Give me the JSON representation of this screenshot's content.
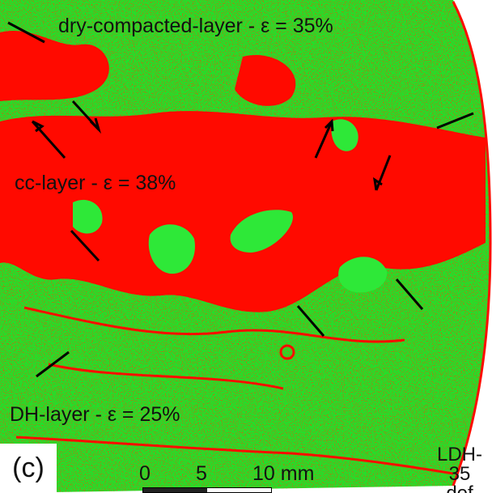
{
  "labels": {
    "dry_layer": "dry-compacted-layer - ε = 35%",
    "cc_layer": "cc-layer - ε = 38%",
    "dh_layer": "DH-layer - ε = 25%",
    "panel": "(c)",
    "sample_line1": "LDH-35",
    "sample_line2": "def"
  },
  "scale": {
    "tick_0": "0",
    "tick_5": "5",
    "tick_10": "10 mm"
  },
  "colors": {
    "matrix": "#22e02a",
    "pores": "#ff0a00",
    "boundary": "#d8e23a",
    "background": "#ffffff"
  }
}
